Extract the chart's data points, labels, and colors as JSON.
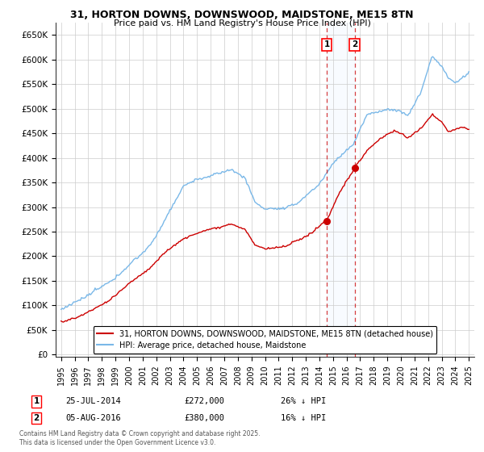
{
  "title_line1": "31, HORTON DOWNS, DOWNSWOOD, MAIDSTONE, ME15 8TN",
  "title_line2": "Price paid vs. HM Land Registry's House Price Index (HPI)",
  "ytick_labels": [
    "£0",
    "£50K",
    "£100K",
    "£150K",
    "£200K",
    "£250K",
    "£300K",
    "£350K",
    "£400K",
    "£450K",
    "£500K",
    "£550K",
    "£600K",
    "£650K"
  ],
  "ytick_values": [
    0,
    50000,
    100000,
    150000,
    200000,
    250000,
    300000,
    350000,
    400000,
    450000,
    500000,
    550000,
    600000,
    650000
  ],
  "sale1_date": "25-JUL-2014",
  "sale1_price": 272000,
  "sale1_hpi_pct": "26% ↓ HPI",
  "sale2_date": "05-AUG-2016",
  "sale2_price": 380000,
  "sale2_hpi_pct": "16% ↓ HPI",
  "legend_label_red": "31, HORTON DOWNS, DOWNSWOOD, MAIDSTONE, ME15 8TN (detached house)",
  "legend_label_blue": "HPI: Average price, detached house, Maidstone",
  "footnote": "Contains HM Land Registry data © Crown copyright and database right 2025.\nThis data is licensed under the Open Government Licence v3.0.",
  "hpi_color": "#7ab8e8",
  "price_color": "#cc0000",
  "background_color": "#ffffff",
  "grid_color": "#cccccc",
  "shade_color": "#ddeeff",
  "sale1_year": 2014.54,
  "sale2_year": 2016.59,
  "ylim_min": -5000,
  "ylim_max": 675000,
  "xlim_min": 1994.6,
  "xlim_max": 2025.4
}
